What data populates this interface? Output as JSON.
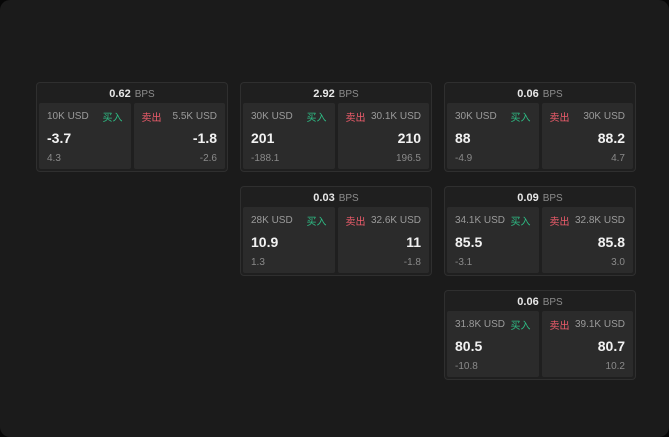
{
  "labels": {
    "buy": "买入",
    "sell": "卖出",
    "unit": "BPS"
  },
  "colors": {
    "background": "#1b1b1b",
    "card": "#1f1f1f",
    "panel": "#2b2b2b",
    "buy_green": "#2ebd85",
    "sell_red": "#ee5c6b"
  },
  "cards": [
    {
      "spread": "0.62",
      "buy": {
        "size": "10K USD",
        "price": "-3.7",
        "delta": "4.3"
      },
      "sell": {
        "size": "5.5K USD",
        "price": "-1.8",
        "delta": "-2.6"
      }
    },
    {
      "spread": "2.92",
      "buy": {
        "size": "30K USD",
        "price": "201",
        "delta": "-188.1"
      },
      "sell": {
        "size": "30.1K USD",
        "price": "210",
        "delta": "196.5"
      }
    },
    {
      "spread": "0.06",
      "buy": {
        "size": "30K USD",
        "price": "88",
        "delta": "-4.9"
      },
      "sell": {
        "size": "30K USD",
        "price": "88.2",
        "delta": "4.7"
      }
    },
    {
      "spread": "0.03",
      "buy": {
        "size": "28K USD",
        "price": "10.9",
        "delta": "1.3"
      },
      "sell": {
        "size": "32.6K USD",
        "price": "11",
        "delta": "-1.8"
      }
    },
    {
      "spread": "0.09",
      "buy": {
        "size": "34.1K USD",
        "price": "85.5",
        "delta": "-3.1"
      },
      "sell": {
        "size": "32.8K USD",
        "price": "85.8",
        "delta": "3.0"
      }
    },
    {
      "spread": "0.06",
      "buy": {
        "size": "31.8K USD",
        "price": "80.5",
        "delta": "-10.8"
      },
      "sell": {
        "size": "39.1K USD",
        "price": "80.7",
        "delta": "10.2"
      }
    }
  ]
}
